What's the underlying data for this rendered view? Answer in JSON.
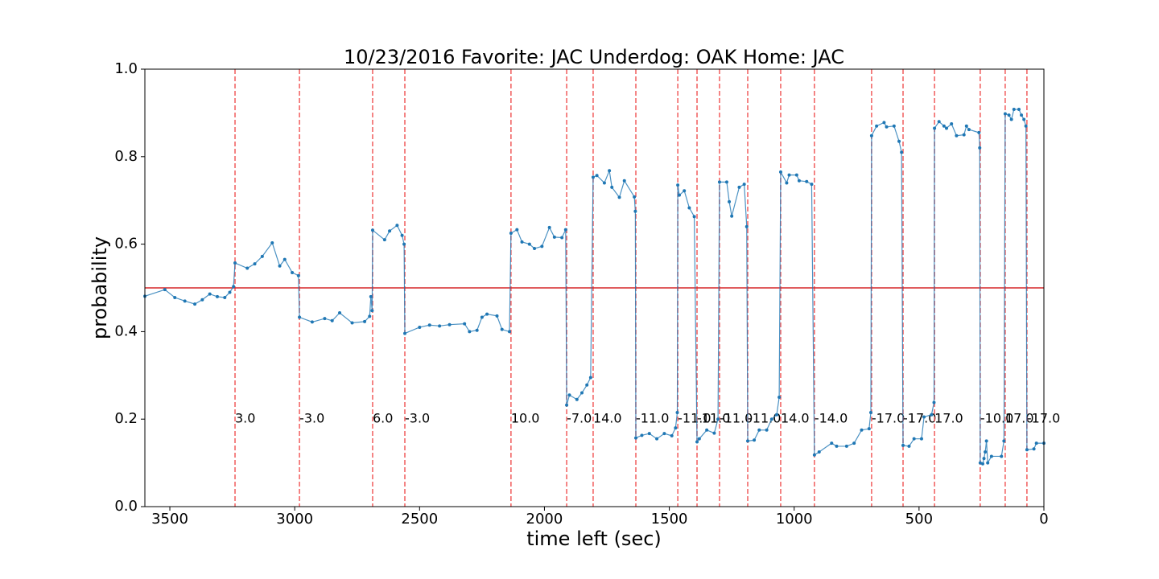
{
  "chart_data": {
    "type": "line",
    "title": "10/23/2016 Favorite: JAC Underdog: OAK Home: JAC",
    "xlabel": "time left (sec)",
    "ylabel": "probability",
    "xlim": [
      3600,
      0
    ],
    "ylim": [
      0,
      1
    ],
    "xticks": [
      3500,
      3000,
      2500,
      2000,
      1500,
      1000,
      500,
      0
    ],
    "yticks": [
      {
        "value": 0,
        "label": "0.0"
      },
      {
        "value": 0.2,
        "label": "0.2"
      },
      {
        "value": 0.4,
        "label": "0.4"
      },
      {
        "value": 0.6,
        "label": "0.6"
      },
      {
        "value": 0.8,
        "label": "0.8"
      },
      {
        "value": 1,
        "label": "1.0"
      }
    ],
    "hline": {
      "y": 0.5,
      "color": "#d62728"
    },
    "vline_color": "#f15c5c",
    "series": [
      {
        "color": "#1f77b4",
        "x": [
          3600,
          3520,
          3480,
          3440,
          3400,
          3370,
          3340,
          3310,
          3280,
          3260,
          3245,
          3239,
          3190,
          3160,
          3130,
          3090,
          3060,
          3040,
          3010,
          2985,
          2981,
          2930,
          2880,
          2850,
          2820,
          2770,
          2720,
          2700,
          2695,
          2690,
          2688,
          2640,
          2620,
          2590,
          2570,
          2562,
          2559,
          2500,
          2460,
          2420,
          2380,
          2320,
          2300,
          2270,
          2250,
          2230,
          2190,
          2170,
          2140,
          2134,
          2110,
          2090,
          2060,
          2040,
          2010,
          1980,
          1960,
          1930,
          1915,
          1911,
          1900,
          1870,
          1850,
          1830,
          1815,
          1805,
          1790,
          1760,
          1740,
          1730,
          1700,
          1680,
          1640,
          1636,
          1634,
          1610,
          1580,
          1550,
          1520,
          1490,
          1475,
          1468,
          1466,
          1460,
          1440,
          1420,
          1400,
          1389,
          1380,
          1350,
          1320,
          1305,
          1299,
          1270,
          1260,
          1250,
          1220,
          1200,
          1190,
          1186,
          1160,
          1140,
          1110,
          1090,
          1070,
          1060,
          1054,
          1030,
          1020,
          990,
          980,
          950,
          930,
          919,
          900,
          850,
          830,
          790,
          760,
          730,
          700,
          693,
          690,
          670,
          640,
          630,
          600,
          580,
          570,
          564,
          540,
          520,
          490,
          480,
          450,
          440,
          438,
          420,
          400,
          390,
          370,
          350,
          320,
          310,
          300,
          260,
          257,
          255,
          245,
          240,
          235,
          230,
          225,
          210,
          170,
          160,
          155,
          140,
          130,
          120,
          100,
          90,
          80,
          72,
          68,
          40,
          30,
          0
        ],
        "values": [
          0.481,
          0.496,
          0.478,
          0.47,
          0.463,
          0.473,
          0.486,
          0.48,
          0.478,
          0.49,
          0.503,
          0.557,
          0.545,
          0.555,
          0.572,
          0.603,
          0.55,
          0.565,
          0.535,
          0.528,
          0.433,
          0.422,
          0.43,
          0.425,
          0.443,
          0.42,
          0.423,
          0.435,
          0.48,
          0.448,
          0.632,
          0.61,
          0.63,
          0.643,
          0.62,
          0.6,
          0.396,
          0.41,
          0.415,
          0.413,
          0.416,
          0.418,
          0.4,
          0.403,
          0.433,
          0.44,
          0.436,
          0.405,
          0.4,
          0.625,
          0.633,
          0.605,
          0.6,
          0.59,
          0.595,
          0.638,
          0.616,
          0.615,
          0.633,
          0.232,
          0.255,
          0.245,
          0.26,
          0.278,
          0.295,
          0.753,
          0.757,
          0.74,
          0.768,
          0.73,
          0.707,
          0.745,
          0.708,
          0.675,
          0.157,
          0.163,
          0.167,
          0.155,
          0.167,
          0.162,
          0.18,
          0.215,
          0.735,
          0.712,
          0.722,
          0.683,
          0.663,
          0.148,
          0.155,
          0.175,
          0.168,
          0.2,
          0.742,
          0.742,
          0.697,
          0.664,
          0.73,
          0.737,
          0.64,
          0.15,
          0.152,
          0.175,
          0.175,
          0.2,
          0.21,
          0.25,
          0.765,
          0.74,
          0.758,
          0.758,
          0.745,
          0.743,
          0.737,
          0.118,
          0.125,
          0.145,
          0.138,
          0.138,
          0.145,
          0.175,
          0.178,
          0.215,
          0.848,
          0.87,
          0.878,
          0.868,
          0.87,
          0.835,
          0.81,
          0.14,
          0.138,
          0.155,
          0.155,
          0.205,
          0.21,
          0.238,
          0.865,
          0.88,
          0.87,
          0.865,
          0.875,
          0.848,
          0.85,
          0.87,
          0.862,
          0.855,
          0.82,
          0.1,
          0.098,
          0.11,
          0.125,
          0.15,
          0.1,
          0.115,
          0.115,
          0.15,
          0.898,
          0.895,
          0.885,
          0.908,
          0.908,
          0.895,
          0.885,
          0.87,
          0.13,
          0.132,
          0.145,
          0.145
        ]
      }
    ],
    "annotations": [
      {
        "x": 3239,
        "y": 0.2,
        "text": "3.0"
      },
      {
        "x": 2981,
        "y": 0.2,
        "text": "-3.0"
      },
      {
        "x": 2688,
        "y": 0.2,
        "text": "6.0"
      },
      {
        "x": 2559,
        "y": 0.2,
        "text": "-3.0"
      },
      {
        "x": 2134,
        "y": 0.2,
        "text": "10.0"
      },
      {
        "x": 1911,
        "y": 0.2,
        "text": "-7.0"
      },
      {
        "x": 1805,
        "y": 0.2,
        "text": "14.0"
      },
      {
        "x": 1634,
        "y": 0.2,
        "text": "-11.0"
      },
      {
        "x": 1466,
        "y": 0.2,
        "text": "-11.0"
      },
      {
        "x": 1389,
        "y": 0.2,
        "text": "-11.0"
      },
      {
        "x": 1299,
        "y": 0.2,
        "text": "-11.0"
      },
      {
        "x": 1186,
        "y": 0.2,
        "text": "-11.0"
      },
      {
        "x": 1054,
        "y": 0.2,
        "text": "14.0"
      },
      {
        "x": 919,
        "y": 0.2,
        "text": "-14.0"
      },
      {
        "x": 690,
        "y": 0.2,
        "text": "-17.0"
      },
      {
        "x": 564,
        "y": 0.2,
        "text": "-17.0"
      },
      {
        "x": 438,
        "y": 0.2,
        "text": "17.0"
      },
      {
        "x": 255,
        "y": 0.2,
        "text": "-10.0"
      },
      {
        "x": 155,
        "y": 0.2,
        "text": "17.0"
      },
      {
        "x": 68,
        "y": 0.2,
        "text": "-17.0"
      }
    ]
  }
}
